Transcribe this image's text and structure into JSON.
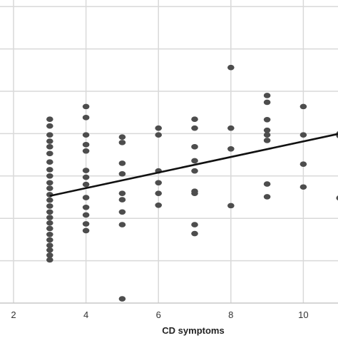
{
  "chart_data": {
    "type": "scatter",
    "title": "",
    "xlabel": "CD symptoms",
    "ylabel": "",
    "xlim": [
      2,
      11
    ],
    "ylim": [
      0,
      7
    ],
    "x_ticks": [
      "2",
      "4",
      "6",
      "8",
      "10"
    ],
    "grid": true,
    "legend": "none",
    "colors": {
      "marker": "#4d4d4d",
      "trend_line": "#111111",
      "grid": "#d9d9d9"
    },
    "series": [
      {
        "type": "scatter",
        "points": [
          [
            3,
            4.34
          ],
          [
            3,
            4.18
          ],
          [
            3,
            3.97
          ],
          [
            3,
            3.82
          ],
          [
            3,
            3.69
          ],
          [
            3,
            3.53
          ],
          [
            3,
            3.33
          ],
          [
            3,
            3.15
          ],
          [
            3,
            3.0
          ],
          [
            3,
            2.84
          ],
          [
            3,
            2.71
          ],
          [
            3,
            2.56
          ],
          [
            3,
            2.43
          ],
          [
            3,
            2.29
          ],
          [
            3,
            2.15
          ],
          [
            3,
            2.02
          ],
          [
            3,
            1.89
          ],
          [
            3,
            1.76
          ],
          [
            3,
            1.62
          ],
          [
            3,
            1.49
          ],
          [
            3,
            1.36
          ],
          [
            3,
            1.25
          ],
          [
            3,
            1.13
          ],
          [
            3,
            1.02
          ],
          [
            4,
            4.64
          ],
          [
            4,
            4.38
          ],
          [
            4,
            3.97
          ],
          [
            4,
            3.74
          ],
          [
            4,
            3.59
          ],
          [
            4,
            3.13
          ],
          [
            4,
            2.97
          ],
          [
            4,
            2.8
          ],
          [
            4,
            2.49
          ],
          [
            4,
            2.26
          ],
          [
            4,
            2.08
          ],
          [
            4,
            1.87
          ],
          [
            4,
            1.71
          ],
          [
            5,
            3.92
          ],
          [
            5,
            3.79
          ],
          [
            5,
            3.3
          ],
          [
            5,
            3.05
          ],
          [
            5,
            2.59
          ],
          [
            5,
            2.44
          ],
          [
            5,
            2.15
          ],
          [
            5,
            1.85
          ],
          [
            5,
            0.1
          ],
          [
            6,
            4.13
          ],
          [
            6,
            3.97
          ],
          [
            6,
            3.12
          ],
          [
            6,
            2.84
          ],
          [
            6,
            2.59
          ],
          [
            6,
            2.31
          ],
          [
            7,
            4.34
          ],
          [
            7,
            4.13
          ],
          [
            7,
            3.69
          ],
          [
            7,
            3.36
          ],
          [
            7,
            3.12
          ],
          [
            7,
            2.64
          ],
          [
            7,
            2.59
          ],
          [
            7,
            1.85
          ],
          [
            7,
            1.64
          ],
          [
            8,
            5.56
          ],
          [
            8,
            4.13
          ],
          [
            8,
            3.64
          ],
          [
            8,
            2.3
          ],
          [
            9,
            4.9
          ],
          [
            9,
            4.74
          ],
          [
            9,
            4.33
          ],
          [
            9,
            4.08
          ],
          [
            9,
            3.97
          ],
          [
            9,
            3.84
          ],
          [
            9,
            2.81
          ],
          [
            9,
            2.51
          ],
          [
            10,
            4.64
          ],
          [
            10,
            3.97
          ],
          [
            10,
            3.28
          ],
          [
            10,
            2.74
          ],
          [
            11,
            4.0
          ],
          [
            11,
            3.95
          ],
          [
            11,
            2.48
          ]
        ]
      },
      {
        "type": "line",
        "points": [
          [
            3,
            2.53
          ],
          [
            11,
            4.0
          ]
        ]
      }
    ]
  }
}
